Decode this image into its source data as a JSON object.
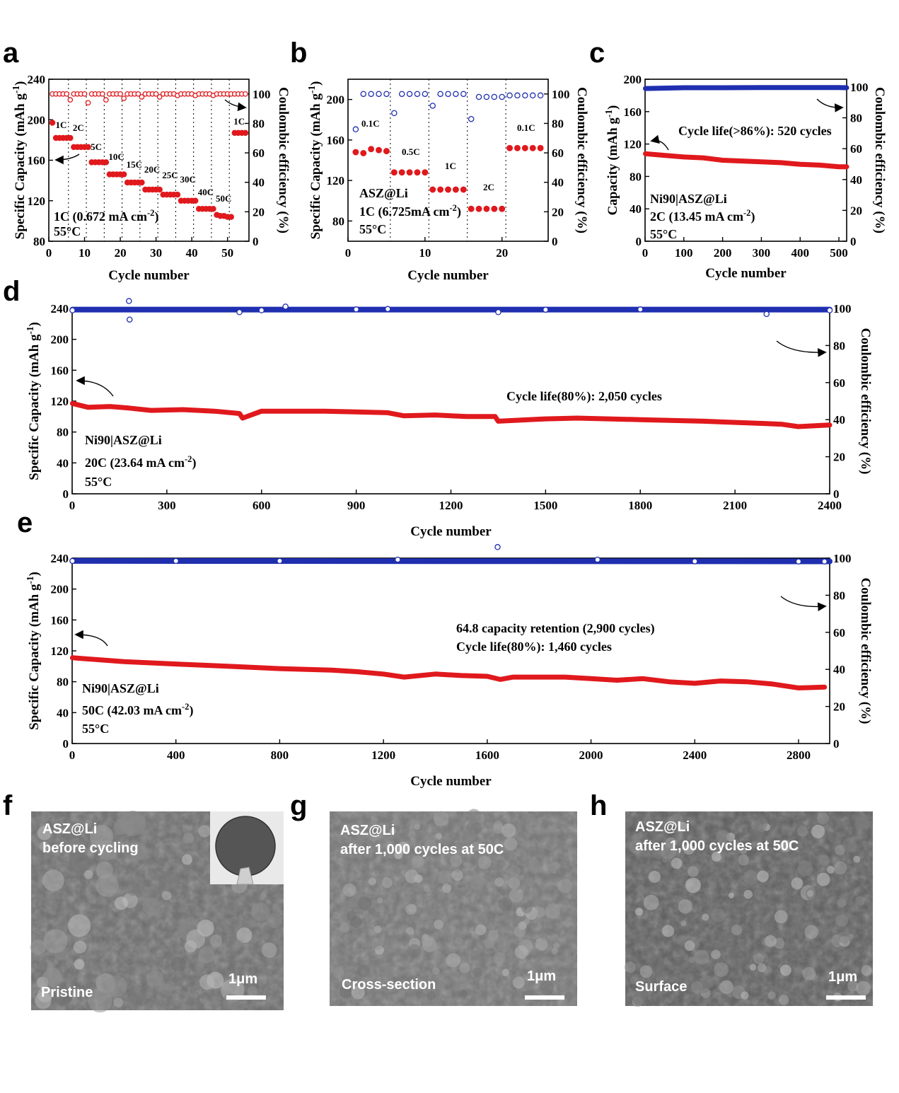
{
  "panels": [
    {
      "id": "a",
      "letter": "a",
      "box": "a",
      "ylabel": "Specific Capacity (mAh g⁻¹)",
      "y2label": "Coulombic efficiency (%)",
      "xlabel": "Cycle number",
      "xticks": [
        "0",
        "10",
        "20",
        "30",
        "40",
        "50"
      ],
      "yticks": [
        "80",
        "120",
        "160",
        "200",
        "240"
      ],
      "y2ticks": [
        "0",
        "20",
        "40",
        "60",
        "80",
        "100"
      ],
      "ann": [
        "1C (0.672 mA cm⁻²)",
        "55°C"
      ],
      "rates": [
        "1C",
        "2C",
        "5C",
        "10C",
        "15C",
        "20C",
        "25C",
        "30C",
        "40C",
        "50C",
        "1C"
      ]
    },
    {
      "id": "b",
      "letter": "b",
      "box": "b",
      "ylabel": "Specific Capacity (mAh g⁻¹)",
      "y2label": "Coulombic efficiency (%)",
      "xlabel": "Cycle number",
      "xticks": [
        "0",
        "10",
        "20"
      ],
      "yticks": [
        "80",
        "120",
        "160",
        "200"
      ],
      "y2ticks": [
        "0",
        "20",
        "40",
        "60",
        "80",
        "100"
      ],
      "ann": [
        "ASZ@Li",
        "1C (6.725mA cm⁻²)",
        "55°C"
      ],
      "rates": [
        "0.1C",
        "0.5C",
        "1C",
        "2C",
        "0.1C"
      ]
    },
    {
      "id": "c",
      "letter": "c",
      "box": "c",
      "ylabel": "Capacity (mAh g⁻¹)",
      "y2label": "Coulombic efficiency (%)",
      "xlabel": "Cycle number",
      "xticks": [
        "0",
        "100",
        "200",
        "300",
        "400",
        "500"
      ],
      "yticks": [
        "0",
        "40",
        "80",
        "120",
        "160",
        "200"
      ],
      "y2ticks": [
        "0",
        "20",
        "40",
        "60",
        "80",
        "100"
      ],
      "ann": [
        "Cycle life(>86%): 520 cycles",
        "Ni90|ASZ@Li",
        "2C (13.45 mA cm⁻²)",
        "55°C"
      ]
    },
    {
      "id": "d",
      "letter": "d",
      "box": "d",
      "ylabel": "Specific Capacity (mAh g⁻¹)",
      "y2label": "Coulombic efficiency (%)",
      "xlabel": "Cycle number",
      "xticks": [
        "0",
        "300",
        "600",
        "900",
        "1200",
        "1500",
        "1800",
        "2100",
        "2400"
      ],
      "yticks": [
        "0",
        "40",
        "80",
        "120",
        "160",
        "200",
        "240"
      ],
      "y2ticks": [
        "0",
        "20",
        "40",
        "60",
        "80",
        "100"
      ],
      "ann": [
        "Cycle life(80%): 2,050 cycles",
        "Ni90|ASZ@Li",
        "20C (23.64 mA cm⁻²)",
        "55°C"
      ]
    },
    {
      "id": "e",
      "letter": "e",
      "box": "e",
      "ylabel": "Specific Capacity (mAh g⁻¹)",
      "y2label": "Coulombic efficiency (%)",
      "xlabel": "Cycle number",
      "xticks": [
        "0",
        "400",
        "800",
        "1200",
        "1600",
        "2000",
        "2400",
        "2800"
      ],
      "yticks": [
        "0",
        "40",
        "80",
        "120",
        "160",
        "200",
        "240"
      ],
      "y2ticks": [
        "0",
        "20",
        "40",
        "60",
        "80",
        "100"
      ],
      "ann": [
        "64.8 capacity retention (2,900 cycles)",
        "Cycle life(80%): 1,460 cycles",
        "Ni90|ASZ@Li",
        "50C (42.03 mA cm⁻²)",
        "55°C"
      ]
    }
  ],
  "sem": [
    {
      "letter": "f",
      "line1": "ASZ@Li",
      "line2": "before cycling",
      "bottom": "Pristine",
      "scale": "1μm",
      "tone": "#6e6e6e"
    },
    {
      "letter": "g",
      "line1": "ASZ@Li",
      "line2": "after 1,000 cycles at 50C",
      "bottom": "Cross-section",
      "scale": "1μm",
      "tone": "#767676"
    },
    {
      "letter": "h",
      "line1": "ASZ@Li",
      "line2": "after 1,000 cycles at 50C",
      "bottom": "Surface",
      "scale": "1μm",
      "tone": "#5e5e5e"
    }
  ],
  "colors": {
    "capacity": "#e0191d",
    "ce_rate": "#e0191d",
    "ce_long": "#1f2fb0",
    "ce_b": "#1f2fb0"
  },
  "chart_data": [
    {
      "panel": "a",
      "type": "scatter",
      "xlabel": "Cycle number",
      "ylabel": "Specific Capacity (mAh g-1)",
      "y2label": "Coulombic efficiency (%)",
      "xlim": [
        0,
        56
      ],
      "ylim": [
        80,
        240
      ],
      "y2lim": [
        0,
        110
      ],
      "series": [
        {
          "name": "capacity",
          "x": [
            1,
            2,
            3,
            4,
            5,
            6,
            7,
            8,
            9,
            10,
            11,
            12,
            13,
            14,
            15,
            16,
            17,
            18,
            19,
            20,
            21,
            22,
            23,
            24,
            25,
            26,
            27,
            28,
            29,
            30,
            31,
            32,
            33,
            34,
            35,
            36,
            37,
            38,
            39,
            40,
            41,
            42,
            43,
            44,
            45,
            46,
            47,
            48,
            49,
            50,
            51,
            52,
            53,
            54,
            55
          ],
          "y": [
            197,
            182,
            182,
            182,
            182,
            182,
            173,
            173,
            173,
            173,
            173,
            158,
            158,
            158,
            158,
            158,
            146,
            146,
            146,
            146,
            146,
            138,
            138,
            138,
            138,
            138,
            131,
            131,
            131,
            131,
            131,
            126,
            126,
            126,
            126,
            126,
            120,
            120,
            120,
            120,
            120,
            112,
            112,
            112,
            112,
            112,
            106,
            105,
            105,
            104,
            104,
            187,
            187,
            187,
            187
          ]
        },
        {
          "name": "CE",
          "x": [
            1,
            2,
            3,
            4,
            5,
            6,
            7,
            8,
            9,
            10,
            11,
            12,
            13,
            14,
            15,
            16,
            17,
            18,
            19,
            20,
            21,
            22,
            23,
            24,
            25,
            26,
            27,
            28,
            29,
            30,
            31,
            32,
            33,
            34,
            35,
            36,
            37,
            38,
            39,
            40,
            41,
            42,
            43,
            44,
            45,
            46,
            47,
            48,
            49,
            50,
            51,
            52,
            53,
            54,
            55
          ],
          "y": [
            100,
            100,
            100,
            100,
            100,
            96,
            100,
            100,
            100,
            100,
            94,
            100,
            100,
            100,
            100,
            96,
            100,
            100,
            100,
            100,
            97,
            100,
            100,
            100,
            100,
            98,
            100,
            100,
            100,
            100,
            98,
            100,
            100,
            100,
            100,
            99,
            100,
            100,
            100,
            100,
            99,
            100,
            100,
            100,
            100,
            99,
            100,
            100,
            100,
            100,
            100,
            100,
            100,
            100,
            100
          ]
        }
      ]
    },
    {
      "panel": "b",
      "type": "scatter",
      "xlabel": "Cycle number",
      "ylabel": "Specific Capacity (mAh g-1)",
      "y2label": "Coulombic efficiency (%)",
      "xlim": [
        0,
        26
      ],
      "ylim": [
        60,
        220
      ],
      "y2lim": [
        0,
        110
      ],
      "series": [
        {
          "name": "capacity",
          "x": [
            1,
            2,
            3,
            4,
            5,
            6,
            7,
            8,
            9,
            10,
            11,
            12,
            13,
            14,
            15,
            16,
            17,
            18,
            19,
            20,
            21,
            22,
            23,
            24,
            25
          ],
          "y": [
            148,
            147,
            151,
            150,
            149,
            128,
            128,
            128,
            128,
            128,
            111,
            111,
            111,
            111,
            111,
            92,
            92,
            92,
            92,
            92,
            152,
            152,
            152,
            152,
            152
          ]
        },
        {
          "name": "CE",
          "x": [
            1,
            2,
            3,
            4,
            5,
            6,
            7,
            8,
            9,
            10,
            11,
            12,
            13,
            14,
            15,
            16,
            17,
            18,
            19,
            20,
            21,
            22,
            23,
            24,
            25
          ],
          "y": [
            76,
            100,
            100,
            100,
            100,
            87,
            100,
            100,
            100,
            100,
            92,
            100,
            100,
            100,
            100,
            83,
            98,
            98,
            98,
            98,
            99,
            99,
            99,
            99,
            99
          ]
        }
      ]
    },
    {
      "panel": "c",
      "type": "line",
      "xlabel": "Cycle number",
      "ylabel": "Capacity (mAh g-1)",
      "y2label": "Coulombic efficiency (%)",
      "xlim": [
        0,
        520
      ],
      "ylim": [
        0,
        200
      ],
      "y2lim": [
        0,
        105
      ],
      "series": [
        {
          "name": "capacity",
          "x": [
            1,
            50,
            100,
            150,
            200,
            250,
            300,
            350,
            400,
            450,
            500,
            520
          ],
          "y": [
            108,
            106,
            104,
            103,
            100,
            99,
            98,
            97,
            95,
            94,
            92,
            92
          ]
        },
        {
          "name": "CE",
          "x": [
            1,
            100,
            200,
            300,
            400,
            500,
            520
          ],
          "y": [
            99,
            99.5,
            99.5,
            99.6,
            99.6,
            99.6,
            99.5
          ]
        }
      ]
    },
    {
      "panel": "d",
      "type": "line",
      "xlabel": "Cycle number",
      "ylabel": "Specific Capacity (mAh g-1)",
      "y2label": "Coulombic efficiency (%)",
      "xlim": [
        0,
        2400
      ],
      "ylim": [
        0,
        240
      ],
      "y2lim": [
        0,
        100
      ],
      "series": [
        {
          "name": "capacity",
          "x": [
            1,
            50,
            120,
            180,
            250,
            350,
            450,
            530,
            540,
            600,
            800,
            1000,
            1050,
            1150,
            1250,
            1340,
            1350,
            1500,
            1600,
            1800,
            2000,
            2200,
            2250,
            2300,
            2400
          ],
          "y": [
            117,
            112,
            113,
            111,
            108,
            109,
            107,
            104,
            98,
            107,
            107,
            105,
            101,
            102,
            100,
            100,
            94,
            97,
            98,
            96,
            94,
            91,
            90,
            87,
            89
          ]
        },
        {
          "name": "CE",
          "x": [
            1,
            180,
            182,
            530,
            600,
            676,
            900,
            1000,
            1350,
            1500,
            1800,
            2200,
            2400
          ],
          "y": [
            99,
            104,
            94,
            98,
            99,
            101,
            99.5,
            99.7,
            98,
            99.3,
            99.5,
            97,
            99
          ]
        }
      ]
    },
    {
      "panel": "e",
      "type": "line",
      "xlabel": "Cycle number",
      "ylabel": "Specific Capacity (mAh g-1)",
      "y2label": "Coulombic efficiency (%)",
      "xlim": [
        0,
        2920
      ],
      "ylim": [
        0,
        240
      ],
      "y2lim": [
        0,
        100
      ],
      "series": [
        {
          "name": "capacity",
          "x": [
            1,
            200,
            400,
            600,
            800,
            1000,
            1100,
            1200,
            1280,
            1400,
            1500,
            1600,
            1650,
            1700,
            1800,
            1900,
            2000,
            2100,
            2200,
            2300,
            2400,
            2500,
            2600,
            2700,
            2800,
            2900
          ],
          "y": [
            111,
            106,
            103,
            100,
            97,
            95,
            93,
            90,
            86,
            90,
            88,
            87,
            83,
            86,
            86,
            86,
            84,
            82,
            84,
            80,
            78,
            81,
            80,
            77,
            72,
            73
          ]
        },
        {
          "name": "CE",
          "x": [
            1,
            400,
            800,
            1255,
            1640,
            2025,
            2400,
            2800,
            2900
          ],
          "y": [
            98.5,
            98.5,
            98.5,
            99.2,
            106,
            99.2,
            98.3,
            98.2,
            98.2
          ]
        }
      ]
    }
  ]
}
